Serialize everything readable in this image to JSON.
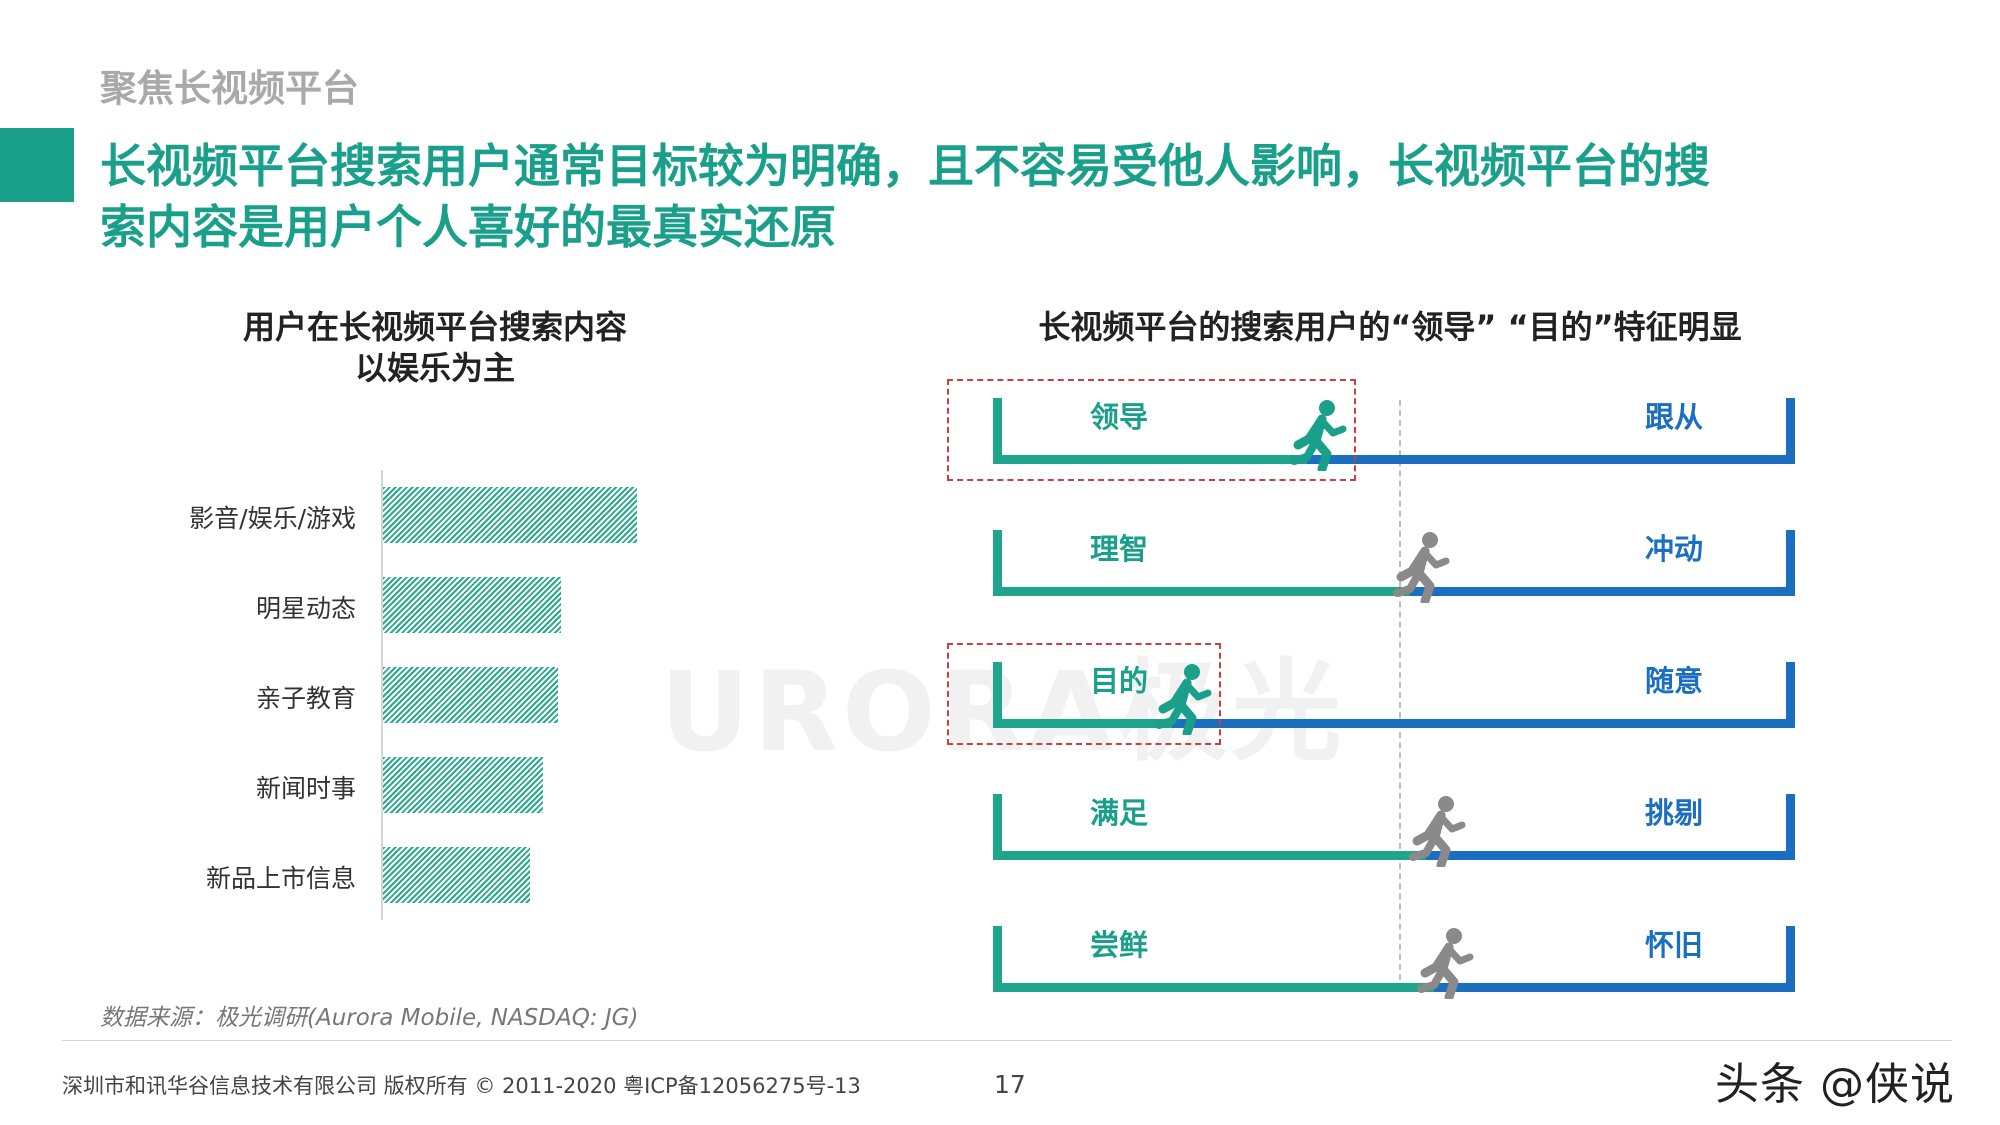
{
  "section_label": "聚焦长视频平台",
  "headline_lines": [
    "长视频平台搜索用户通常目标较为明确，且不容易受他人影响，长视频平台的搜",
    "索内容是用户个人喜好的最真实还原"
  ],
  "colors": {
    "accent_green": "#1aa08a",
    "accent_blue": "#1a6fc0",
    "highlight_red": "#c94040",
    "runner_gray": "#8a8a8a"
  },
  "chart_data": [
    {
      "type": "bar",
      "orientation": "horizontal",
      "title_lines": [
        "用户在长视频平台搜索内容",
        "以娱乐为主"
      ],
      "categories": [
        "影音/娱乐/游戏",
        "明星动态",
        "亲子教育",
        "新闻时事",
        "新品上市信息"
      ],
      "values": [
        100,
        70,
        69,
        63,
        58
      ],
      "xlim": [
        0,
        100
      ],
      "value_axis_shown": false,
      "fill": "hatched",
      "color": "#2aa98f"
    },
    {
      "type": "scale",
      "title": "长视频平台的搜索用户的“领导” “目的”特征明显",
      "range": [
        0,
        1
      ],
      "midpoint_marker": "dashed",
      "items": [
        {
          "left": "领导",
          "right": "跟从",
          "value": 0.39,
          "highlighted": true
        },
        {
          "left": "理智",
          "right": "冲动",
          "value": 0.52,
          "highlighted": false
        },
        {
          "left": "目的",
          "right": "随意",
          "value": 0.22,
          "highlighted": true
        },
        {
          "left": "满足",
          "right": "挑剔",
          "value": 0.54,
          "highlighted": false
        },
        {
          "left": "尝鲜",
          "right": "怀旧",
          "value": 0.55,
          "highlighted": false
        }
      ],
      "icon": "running-person-icon"
    }
  ],
  "watermark": "URORA极光",
  "source_note": "数据来源：极光调研(Aurora Mobile, NASDAQ: JG)",
  "footer": {
    "copyright": "深圳市和讯华谷信息技术有限公司 版权所有 © 2011-2020 粤ICP备12056275号-13",
    "page_number": "17"
  },
  "corner_watermark": "头条 @侠说"
}
